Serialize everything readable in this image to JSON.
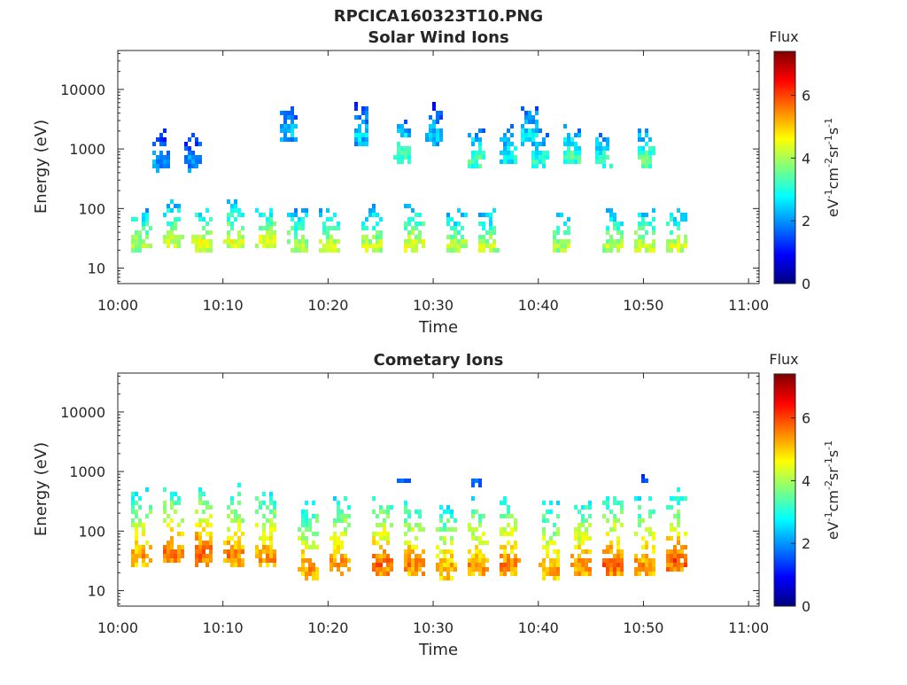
{
  "figure": {
    "title": "RPCICA160323T10.PNG"
  },
  "chart_data": [
    {
      "type": "heatmap",
      "title": "Solar Wind Ions",
      "xlabel": "Time",
      "ylabel": "Energy (eV)",
      "x_ticks": [
        "10:00",
        "10:10",
        "10:20",
        "10:30",
        "10:40",
        "10:50",
        "11:00"
      ],
      "xlim": [
        "10:00",
        "11:01"
      ],
      "y_ticks": [
        "10",
        "100",
        "1000",
        "10000"
      ],
      "ylim": [
        5.5,
        45000
      ],
      "yscale": "log",
      "colorbar": {
        "label": "Flux",
        "unit_base": [
          "eV",
          "cm",
          "sr",
          "s"
        ],
        "unit_exp": [
          "-1",
          "-2",
          "-1",
          "-1"
        ],
        "ticks": [
          "0",
          "2",
          "4",
          "6"
        ],
        "range": [
          0,
          7.4
        ],
        "colormap": "jet"
      },
      "grid": false,
      "bursts": [
        {
          "time": "10:02",
          "energy": 27,
          "flux": 4.6,
          "kind": "low"
        },
        {
          "time": "10:04",
          "energy": 650,
          "flux": 2.6,
          "kind": "high"
        },
        {
          "time": "10:05",
          "energy": 32,
          "flux": 4.8,
          "kind": "low"
        },
        {
          "time": "10:07",
          "energy": 650,
          "flux": 2.5,
          "kind": "high"
        },
        {
          "time": "10:08",
          "energy": 27,
          "flux": 5.0,
          "kind": "low"
        },
        {
          "time": "10:11",
          "energy": 30,
          "flux": 4.9,
          "kind": "low"
        },
        {
          "time": "10:14",
          "energy": 30,
          "flux": 5.0,
          "kind": "low"
        },
        {
          "time": "10:16",
          "energy": 2000,
          "flux": 2.8,
          "kind": "high"
        },
        {
          "time": "10:17",
          "energy": 25,
          "flux": 4.6,
          "kind": "low"
        },
        {
          "time": "10:20",
          "energy": 25,
          "flux": 4.7,
          "kind": "low"
        },
        {
          "time": "10:23",
          "energy": 1800,
          "flux": 2.9,
          "kind": "high"
        },
        {
          "time": "10:24",
          "energy": 25,
          "flux": 4.7,
          "kind": "low"
        },
        {
          "time": "10:27",
          "energy": 900,
          "flux": 3.8,
          "kind": "high"
        },
        {
          "time": "10:28",
          "energy": 27,
          "flux": 4.9,
          "kind": "low"
        },
        {
          "time": "10:30",
          "energy": 1800,
          "flux": 2.9,
          "kind": "high"
        },
        {
          "time": "10:32",
          "energy": 25,
          "flux": 4.5,
          "kind": "low"
        },
        {
          "time": "10:34",
          "energy": 700,
          "flux": 3.9,
          "kind": "high"
        },
        {
          "time": "10:35",
          "energy": 25,
          "flux": 4.6,
          "kind": "low"
        },
        {
          "time": "10:37",
          "energy": 800,
          "flux": 3.4,
          "kind": "high"
        },
        {
          "time": "10:39",
          "energy": 1800,
          "flux": 3.2,
          "kind": "high"
        },
        {
          "time": "10:40",
          "energy": 700,
          "flux": 3.6,
          "kind": "high"
        },
        {
          "time": "10:42",
          "energy": 25,
          "flux": 4.5,
          "kind": "low"
        },
        {
          "time": "10:43",
          "energy": 800,
          "flux": 3.8,
          "kind": "high"
        },
        {
          "time": "10:46",
          "energy": 700,
          "flux": 3.7,
          "kind": "high"
        },
        {
          "time": "10:47",
          "energy": 25,
          "flux": 4.6,
          "kind": "low"
        },
        {
          "time": "10:50",
          "energy": 700,
          "flux": 4.0,
          "kind": "high"
        },
        {
          "time": "10:50",
          "energy": 25,
          "flux": 4.7,
          "kind": "low"
        },
        {
          "time": "10:53",
          "energy": 25,
          "flux": 4.8,
          "kind": "low"
        }
      ]
    },
    {
      "type": "heatmap",
      "title": "Cometary Ions",
      "xlabel": "Time",
      "ylabel": "Energy (eV)",
      "x_ticks": [
        "10:00",
        "10:10",
        "10:20",
        "10:30",
        "10:40",
        "10:50",
        "11:00"
      ],
      "xlim": [
        "10:00",
        "11:01"
      ],
      "y_ticks": [
        "10",
        "100",
        "1000",
        "10000"
      ],
      "ylim": [
        5.5,
        45000
      ],
      "yscale": "log",
      "colorbar": {
        "label": "Flux",
        "unit_base": [
          "eV",
          "cm",
          "sr",
          "s"
        ],
        "unit_exp": [
          "-1",
          "-2",
          "-1",
          "-1"
        ],
        "ticks": [
          "0",
          "2",
          "4",
          "6"
        ],
        "range": [
          0,
          7.4
        ],
        "colormap": "jet"
      },
      "grid": false,
      "bursts": [
        {
          "time": "10:02",
          "energy": 40,
          "flux": 5.8,
          "kind": "cometary"
        },
        {
          "time": "10:05",
          "energy": 45,
          "flux": 6.1,
          "kind": "cometary"
        },
        {
          "time": "10:08",
          "energy": 45,
          "flux": 6.3,
          "kind": "cometary"
        },
        {
          "time": "10:11",
          "energy": 40,
          "flux": 6.0,
          "kind": "cometary"
        },
        {
          "time": "10:14",
          "energy": 40,
          "flux": 5.9,
          "kind": "cometary"
        },
        {
          "time": "10:18",
          "energy": 25,
          "flux": 5.8,
          "kind": "cometary"
        },
        {
          "time": "10:21",
          "energy": 30,
          "flux": 6.0,
          "kind": "cometary"
        },
        {
          "time": "10:25",
          "energy": 30,
          "flux": 6.2,
          "kind": "cometary"
        },
        {
          "time": "10:28",
          "energy": 28,
          "flux": 6.0,
          "kind": "cometary"
        },
        {
          "time": "10:31",
          "energy": 25,
          "flux": 5.7,
          "kind": "cometary"
        },
        {
          "time": "10:34",
          "energy": 28,
          "flux": 5.9,
          "kind": "cometary"
        },
        {
          "time": "10:37",
          "energy": 30,
          "flux": 6.0,
          "kind": "cometary"
        },
        {
          "time": "10:41",
          "energy": 25,
          "flux": 5.8,
          "kind": "cometary"
        },
        {
          "time": "10:44",
          "energy": 28,
          "flux": 5.9,
          "kind": "cometary"
        },
        {
          "time": "10:47",
          "energy": 30,
          "flux": 6.2,
          "kind": "cometary"
        },
        {
          "time": "10:50",
          "energy": 28,
          "flux": 5.9,
          "kind": "cometary"
        },
        {
          "time": "10:53",
          "energy": 35,
          "flux": 6.3,
          "kind": "cometary"
        },
        {
          "time": "10:27",
          "energy": 780,
          "flux": 2.4,
          "kind": "isolated"
        },
        {
          "time": "10:34",
          "energy": 720,
          "flux": 2.5,
          "kind": "isolated"
        },
        {
          "time": "10:50",
          "energy": 800,
          "flux": 2.4,
          "kind": "isolated"
        }
      ]
    }
  ]
}
